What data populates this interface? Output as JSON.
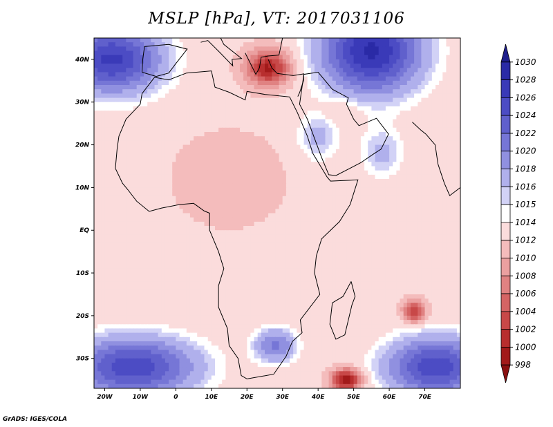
{
  "chart_data": {
    "type": "heatmap",
    "title": "MSLP [hPa], VT: 2017031106",
    "variable": "Mean sea level pressure",
    "units": "hPa",
    "valid_time": "2017031106",
    "xlim": [
      -23,
      80
    ],
    "ylim": [
      -37,
      45
    ],
    "x_ticks": [
      {
        "value": -20,
        "label": "20W"
      },
      {
        "value": -10,
        "label": "10W"
      },
      {
        "value": 0,
        "label": "0"
      },
      {
        "value": 10,
        "label": "10E"
      },
      {
        "value": 20,
        "label": "20E"
      },
      {
        "value": 30,
        "label": "30E"
      },
      {
        "value": 40,
        "label": "40E"
      },
      {
        "value": 50,
        "label": "50E"
      },
      {
        "value": 60,
        "label": "60E"
      },
      {
        "value": 70,
        "label": "70E"
      }
    ],
    "y_ticks": [
      {
        "value": 40,
        "label": "40N"
      },
      {
        "value": 30,
        "label": "30N"
      },
      {
        "value": 20,
        "label": "20N"
      },
      {
        "value": 10,
        "label": "10N"
      },
      {
        "value": 0,
        "label": "EQ"
      },
      {
        "value": -10,
        "label": "10S"
      },
      {
        "value": -20,
        "label": "20S"
      },
      {
        "value": -30,
        "label": "30S"
      }
    ],
    "colorbar": {
      "levels": [
        1030,
        1028,
        1026,
        1024,
        1022,
        1020,
        1018,
        1016,
        1015,
        1014,
        1012,
        1010,
        1008,
        1006,
        1004,
        1002,
        1000,
        998
      ],
      "colors": [
        "#1e1e8c",
        "#2a2aa6",
        "#3a3ab8",
        "#4c4cc4",
        "#6060cc",
        "#7676d6",
        "#9090e0",
        "#b0b0ec",
        "#d2d2f6",
        "#ffffff",
        "#fbdcdc",
        "#f4bcbc",
        "#eba0a0",
        "#e08282",
        "#d56464",
        "#c84848",
        "#b82e2e",
        "#a21a1a",
        "#8a1010"
      ]
    },
    "features": [
      {
        "name": "high",
        "lon": -18,
        "lat": 40,
        "value": 1028
      },
      {
        "name": "high",
        "lon": 55,
        "lat": 42,
        "value": 1030
      },
      {
        "name": "high",
        "lon": -12,
        "lat": -32,
        "value": 1026
      },
      {
        "name": "high",
        "lon": 73,
        "lat": -32,
        "value": 1026
      },
      {
        "name": "high",
        "lon": 28,
        "lat": -27,
        "value": 1020
      },
      {
        "name": "low",
        "lon": 26,
        "lat": 38,
        "value": 1000
      },
      {
        "name": "low",
        "lon": 48,
        "lat": -35,
        "value": 998
      },
      {
        "name": "low",
        "lon": 67,
        "lat": -19,
        "value": 1002
      }
    ]
  },
  "footer": "GrADS: IGES/COLA"
}
